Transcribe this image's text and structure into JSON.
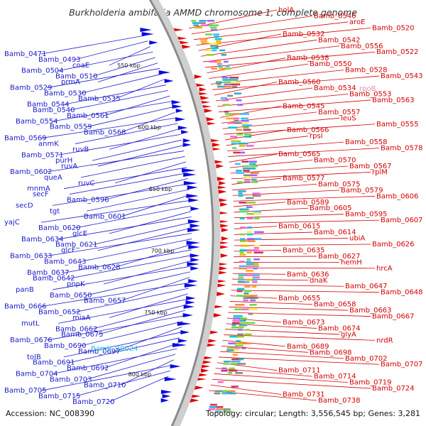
{
  "title": "Burkholderia ambifaria AMMD chromosome 1, complete genome",
  "footer": {
    "accession": "Accession: NC_008390",
    "summary": "Topology: circular; Length: 3,556,545 bp; Genes: 3,281"
  },
  "colors": {
    "left_labels": "#1a1acc",
    "right_labels": "#d40000",
    "rna_label": "#33bbdd",
    "pink_label": "#ee88aa",
    "backbone": "#8a8a8a"
  },
  "scale_marks": [
    {
      "label": "550 kbp"
    },
    {
      "label": "600 kbp"
    },
    {
      "label": "650 kbp"
    },
    {
      "label": "700 kbp"
    },
    {
      "label": "750 kbp"
    },
    {
      "label": "800 kbp"
    }
  ],
  "left_labels": [
    "Bamb_0471",
    "Bamb_0493",
    "coaE",
    "Bamb_0504",
    "Bamb_0510",
    "prmA",
    "Bamb_0529",
    "Bamb_0530",
    "Bamb_0535",
    "Bamb_0544",
    "Bamb_0540",
    "Bamb_0561",
    "Bamb_0554",
    "Bamb_0559",
    "Bamb_0568",
    "Bamb_0569",
    "anmK",
    "ruvB",
    "Bamb_0571",
    "purH",
    "ruvA",
    "Bamb_0602",
    "queA",
    "ruvC",
    "mnmA",
    "secF",
    "Bamb_0596",
    "secD",
    "tgt",
    "Bamb_0601",
    "yajC",
    "Bamb_0620",
    "glcE",
    "Bamb_0634",
    "Bamb_0621",
    "glcF",
    "Bamb_0633",
    "Bamb_0643",
    "Bamb_0628",
    "Bamb_0637",
    "Bamb_0642",
    "pnpK",
    "panB",
    "Bamb_0650",
    "Bamb_0657",
    "Bamb_0666",
    "Bamb_0652",
    "miaA",
    "mutL",
    "Bamb_0662",
    "Bamb_0675",
    "Bamb_0676",
    "Bamb_0690",
    "Bamb_0697",
    "tolB",
    "Bamb_0691",
    "Bamb_0692",
    "Bamb_0704",
    "Bamb_0703",
    "Bamb_0710",
    "Bamb_0705",
    "Bamb_0715",
    "Bamb_0720"
  ],
  "rna_label": "Bamb_R0024",
  "right_labels": [
    "holA",
    "Bamb_0546",
    "aroE",
    "Bamb_0520",
    "Bamb_0532",
    "Bamb_0542",
    "Bamb_0556",
    "Bamb_0522",
    "Bamb_0538",
    "Bamb_0550",
    "Bamb_0528",
    "Bamb_0543",
    "Bamb_0560",
    "Bamb_0534",
    "Bamb_0553",
    "Bamb_0563",
    "Bamb_0545",
    "Bamb_0557",
    "leuS",
    "Bamb_0555",
    "Bamb_0566",
    "rpsI",
    "Bamb_0558",
    "Bamb_0578",
    "Bamb_0565",
    "Bamb_0570",
    "Bamb_0567",
    "rplM",
    "Bamb_0577",
    "Bamb_0575",
    "Bamb_0579",
    "Bamb_0606",
    "Bamb_0589",
    "Bamb_0605",
    "Bamb_0595",
    "Bamb_0607",
    "Bamb_0615",
    "Bamb_0614",
    "ubiA",
    "Bamb_0626",
    "Bamb_0635",
    "Bamb_0627",
    "hemH",
    "hrcA",
    "Bamb_0636",
    "dnaK",
    "Bamb_0647",
    "Bamb_0648",
    "Bamb_0655",
    "Bamb_0658",
    "Bamb_0663",
    "Bamb_0667",
    "Bamb_0673",
    "Bamb_0674",
    "glyA",
    "nrdR",
    "Bamb_0689",
    "Bamb_0698",
    "Bamb_0702",
    "Bamb_0707",
    "Bamb_0711",
    "Bamb_0714",
    "Bamb_0719",
    "Bamb_0724",
    "Bamb_0731",
    "Bamb_0738"
  ],
  "pink_label": "rpoB"
}
